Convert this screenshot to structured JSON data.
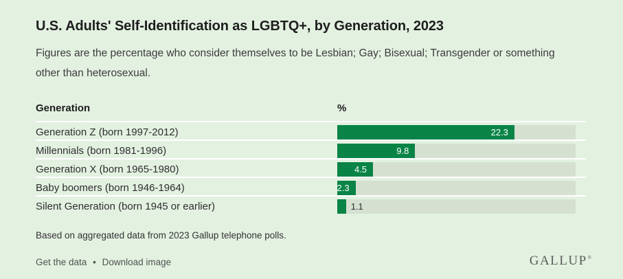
{
  "theme": {
    "background": "#e3f1e1",
    "bar_color": "#0a8446",
    "track_color": "#d5e0d1",
    "separator_color": "#ffffff",
    "title_color": "#1d1d1d",
    "text_color": "#2e2e2e",
    "muted_color": "#4e544e",
    "brand_color": "#575d57"
  },
  "header": {
    "title": "U.S. Adults' Self-Identification as LGBTQ+, by Generation, 2023",
    "subtitle_line1": "Figures are the percentage who consider themselves to be Lesbian; Gay; Bisexual; Transgender or something",
    "subtitle_line2": "other than heterosexual."
  },
  "table": {
    "generation_header": "Generation",
    "value_header": "%"
  },
  "chart_data": {
    "type": "bar",
    "orientation": "horizontal",
    "title": "U.S. Adults' Self-Identification as LGBTQ+, by Generation, 2023",
    "categories": [
      "Generation Z (born 1997-2012)",
      "Millennials (born 1981-1996)",
      "Generation X (born 1965-1980)",
      "Baby boomers (born 1946-1964)",
      "Silent Generation (born 1945 or earlier)"
    ],
    "values": [
      22.3,
      9.8,
      4.5,
      2.3,
      1.1
    ],
    "value_labels": [
      "22.3",
      "9.8",
      "4.5",
      "2.3",
      "1.1"
    ],
    "xlim": [
      0,
      30
    ],
    "unit": "%",
    "grid": false,
    "legend": false
  },
  "footer": {
    "source_note": "Based on aggregated data from 2023 Gallup telephone polls.",
    "links": [
      "Get the data",
      "Download image"
    ],
    "links_separator": "•",
    "brand": "GALLUP",
    "brand_mark": "®"
  }
}
